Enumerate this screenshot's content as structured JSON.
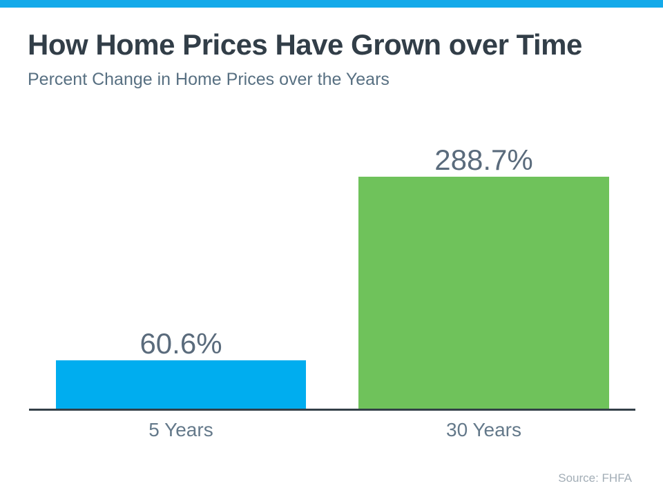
{
  "header": {
    "title": "How Home Prices Have Grown over Time",
    "subtitle": "Percent Change in Home Prices over the Years"
  },
  "footer": {
    "source": "Source: FHFA"
  },
  "theme": {
    "accent_bar_color": "#14aaea",
    "title_color": "#323e48",
    "subtitle_color": "#587082",
    "value_label_color": "#5a6b7c",
    "category_label_color": "#64798a",
    "axis_line_color": "#333f48",
    "source_color": "#a2adb6",
    "background_color": "#ffffff"
  },
  "chart_data": {
    "type": "bar",
    "title": "How Home Prices Have Grown over Time",
    "subtitle": "Percent Change in Home Prices over the Years",
    "categories": [
      "5 Years",
      "30 Years"
    ],
    "values": [
      60.6,
      288.7
    ],
    "value_labels": [
      "60.6%",
      "288.7%"
    ],
    "bar_colors": [
      "#00adef",
      "#6fc25b"
    ],
    "xlabel": "",
    "ylabel": "",
    "ylim": [
      0,
      300
    ],
    "grid": false,
    "legend": false,
    "annotation_source": "Source: FHFA"
  }
}
